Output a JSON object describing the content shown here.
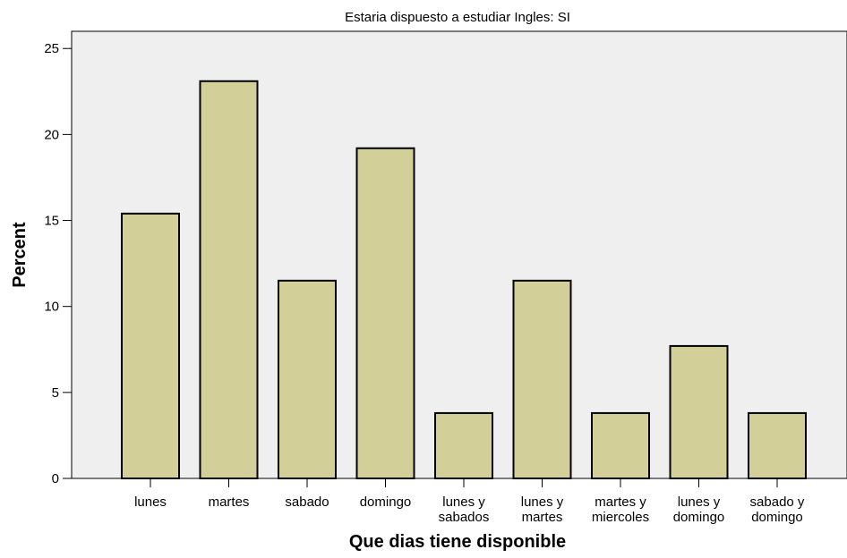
{
  "chart_data": {
    "type": "bar",
    "title": "Estaria dispuesto a estudiar Ingles: SI",
    "xlabel": "Que dias tiene disponible",
    "ylabel": "Percent",
    "categories": [
      "lunes",
      "martes",
      "sabado",
      "domingo",
      "lunes y sabados",
      "lunes y martes",
      "martes y miercoles",
      "lunes y domingo",
      "sabado y domingo"
    ],
    "category_lines": [
      [
        "lunes"
      ],
      [
        "martes"
      ],
      [
        "sabado"
      ],
      [
        "domingo"
      ],
      [
        "lunes y",
        "sabados"
      ],
      [
        "lunes y",
        "martes"
      ],
      [
        "martes y",
        "miercoles"
      ],
      [
        "lunes y",
        "domingo"
      ],
      [
        "sabado y",
        "domingo"
      ]
    ],
    "values": [
      15.4,
      23.1,
      11.5,
      19.2,
      3.8,
      11.5,
      3.8,
      7.7,
      3.8
    ],
    "ylim": [
      0,
      26
    ],
    "yticks": [
      0,
      5,
      10,
      15,
      20,
      25
    ],
    "grid": false,
    "colors": {
      "bar_fill": "#d3cf98",
      "bar_stroke": "#000000",
      "plot_background": "#efefef"
    }
  }
}
